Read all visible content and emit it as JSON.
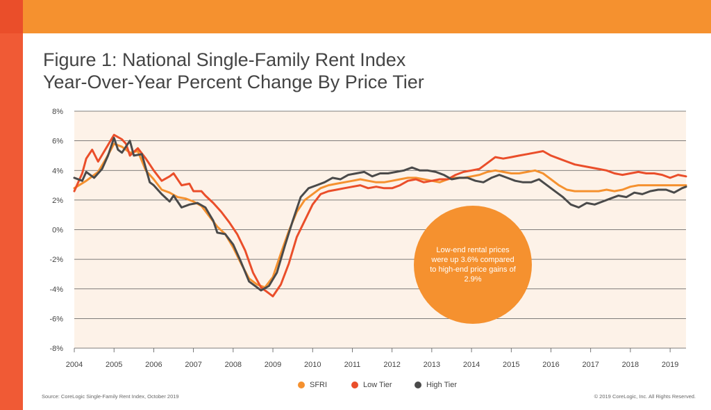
{
  "header": {
    "title_line1": "Figure 1: National Single-Family Rent Index",
    "title_line2": "Year-Over-Year Percent Change By Price Tier"
  },
  "callout": {
    "text": "Low-end rental prices were up 3.6% compared to high-end price gains of 2.9%",
    "color": "#f5912f"
  },
  "footer": {
    "source": "Source: CoreLogic Single-Family Rent Index, October 2019",
    "copyright": "© 2019 CoreLogic, Inc. All Rights Reserved."
  },
  "colors": {
    "brand_orange": "#f5912f",
    "brand_red": "#f05a35",
    "plot_bg": "#fdf2e8"
  },
  "chart_data": {
    "type": "line",
    "title": "Figure 1: National Single-Family Rent Index Year-Over-Year Percent Change By Price Tier",
    "xlabel": "",
    "ylabel": "",
    "xlim": [
      2004,
      2019.4
    ],
    "ylim": [
      -8,
      8
    ],
    "x_ticks": [
      "2004",
      "2005",
      "2006",
      "2007",
      "2008",
      "2009",
      "2010",
      "2011",
      "2012",
      "2013",
      "2014",
      "2015",
      "2016",
      "2017",
      "2018",
      "2019"
    ],
    "y_ticks": [
      "8%",
      "6%",
      "4%",
      "2%",
      "0%",
      "-2%",
      "-4%",
      "-6%",
      "-8%"
    ],
    "grid": "horizontal",
    "legend_position": "bottom",
    "series": [
      {
        "name": "SFRI",
        "color": "#f5912f",
        "points": [
          [
            2004.0,
            2.8
          ],
          [
            2004.3,
            3.3
          ],
          [
            2004.6,
            3.9
          ],
          [
            2004.8,
            4.8
          ],
          [
            2005.0,
            5.8
          ],
          [
            2005.2,
            5.6
          ],
          [
            2005.4,
            5.2
          ],
          [
            2005.6,
            5.3
          ],
          [
            2005.8,
            4.0
          ],
          [
            2006.0,
            3.4
          ],
          [
            2006.2,
            2.7
          ],
          [
            2006.4,
            2.5
          ],
          [
            2006.6,
            2.2
          ],
          [
            2006.8,
            2.1
          ],
          [
            2007.0,
            1.9
          ],
          [
            2007.2,
            1.6
          ],
          [
            2007.4,
            0.9
          ],
          [
            2007.6,
            0.2
          ],
          [
            2007.8,
            -0.3
          ],
          [
            2008.0,
            -1.2
          ],
          [
            2008.2,
            -2.3
          ],
          [
            2008.4,
            -3.3
          ],
          [
            2008.6,
            -3.7
          ],
          [
            2008.8,
            -3.9
          ],
          [
            2009.0,
            -3.2
          ],
          [
            2009.2,
            -1.6
          ],
          [
            2009.4,
            -0.1
          ],
          [
            2009.6,
            1.2
          ],
          [
            2009.8,
            2.0
          ],
          [
            2010.0,
            2.4
          ],
          [
            2010.2,
            2.8
          ],
          [
            2010.4,
            3.0
          ],
          [
            2010.6,
            3.1
          ],
          [
            2010.8,
            3.2
          ],
          [
            2011.0,
            3.3
          ],
          [
            2011.2,
            3.4
          ],
          [
            2011.4,
            3.3
          ],
          [
            2011.6,
            3.2
          ],
          [
            2011.8,
            3.2
          ],
          [
            2012.0,
            3.3
          ],
          [
            2012.2,
            3.4
          ],
          [
            2012.4,
            3.5
          ],
          [
            2012.6,
            3.5
          ],
          [
            2012.8,
            3.4
          ],
          [
            2013.0,
            3.3
          ],
          [
            2013.2,
            3.2
          ],
          [
            2013.4,
            3.4
          ],
          [
            2013.6,
            3.5
          ],
          [
            2013.8,
            3.5
          ],
          [
            2014.0,
            3.6
          ],
          [
            2014.2,
            3.7
          ],
          [
            2014.4,
            3.9
          ],
          [
            2014.6,
            4.0
          ],
          [
            2014.8,
            3.9
          ],
          [
            2015.0,
            3.8
          ],
          [
            2015.2,
            3.8
          ],
          [
            2015.4,
            3.9
          ],
          [
            2015.6,
            4.0
          ],
          [
            2015.8,
            3.8
          ],
          [
            2016.0,
            3.4
          ],
          [
            2016.2,
            3.0
          ],
          [
            2016.4,
            2.7
          ],
          [
            2016.6,
            2.6
          ],
          [
            2016.8,
            2.6
          ],
          [
            2017.0,
            2.6
          ],
          [
            2017.2,
            2.6
          ],
          [
            2017.4,
            2.7
          ],
          [
            2017.6,
            2.6
          ],
          [
            2017.8,
            2.7
          ],
          [
            2018.0,
            2.9
          ],
          [
            2018.2,
            3.0
          ],
          [
            2018.4,
            3.0
          ],
          [
            2018.6,
            3.0
          ],
          [
            2018.8,
            3.0
          ],
          [
            2019.0,
            3.0
          ],
          [
            2019.2,
            3.0
          ],
          [
            2019.4,
            3.0
          ]
        ]
      },
      {
        "name": "Low Tier",
        "color": "#ea4e2a",
        "points": [
          [
            2004.0,
            2.6
          ],
          [
            2004.2,
            3.8
          ],
          [
            2004.3,
            4.8
          ],
          [
            2004.45,
            5.4
          ],
          [
            2004.6,
            4.6
          ],
          [
            2004.8,
            5.5
          ],
          [
            2005.0,
            6.4
          ],
          [
            2005.2,
            6.1
          ],
          [
            2005.3,
            5.8
          ],
          [
            2005.4,
            5.0
          ],
          [
            2005.6,
            5.5
          ],
          [
            2005.8,
            4.8
          ],
          [
            2005.9,
            4.4
          ],
          [
            2006.0,
            4.0
          ],
          [
            2006.2,
            3.3
          ],
          [
            2006.4,
            3.6
          ],
          [
            2006.5,
            3.8
          ],
          [
            2006.7,
            3.0
          ],
          [
            2006.9,
            3.1
          ],
          [
            2007.0,
            2.6
          ],
          [
            2007.2,
            2.6
          ],
          [
            2007.3,
            2.3
          ],
          [
            2007.5,
            1.8
          ],
          [
            2007.7,
            1.2
          ],
          [
            2007.9,
            0.5
          ],
          [
            2008.1,
            -0.3
          ],
          [
            2008.3,
            -1.4
          ],
          [
            2008.5,
            -2.9
          ],
          [
            2008.7,
            -3.9
          ],
          [
            2008.9,
            -4.3
          ],
          [
            2009.0,
            -4.5
          ],
          [
            2009.2,
            -3.7
          ],
          [
            2009.4,
            -2.3
          ],
          [
            2009.6,
            -0.5
          ],
          [
            2009.8,
            0.6
          ],
          [
            2010.0,
            1.7
          ],
          [
            2010.2,
            2.4
          ],
          [
            2010.4,
            2.6
          ],
          [
            2010.6,
            2.7
          ],
          [
            2010.8,
            2.8
          ],
          [
            2011.0,
            2.9
          ],
          [
            2011.2,
            3.0
          ],
          [
            2011.4,
            2.8
          ],
          [
            2011.6,
            2.9
          ],
          [
            2011.8,
            2.8
          ],
          [
            2012.0,
            2.8
          ],
          [
            2012.2,
            3.0
          ],
          [
            2012.4,
            3.3
          ],
          [
            2012.6,
            3.4
          ],
          [
            2012.8,
            3.2
          ],
          [
            2013.0,
            3.3
          ],
          [
            2013.2,
            3.4
          ],
          [
            2013.4,
            3.4
          ],
          [
            2013.6,
            3.7
          ],
          [
            2013.8,
            3.9
          ],
          [
            2014.0,
            4.0
          ],
          [
            2014.2,
            4.1
          ],
          [
            2014.4,
            4.5
          ],
          [
            2014.6,
            4.9
          ],
          [
            2014.8,
            4.8
          ],
          [
            2015.0,
            4.9
          ],
          [
            2015.2,
            5.0
          ],
          [
            2015.4,
            5.1
          ],
          [
            2015.6,
            5.2
          ],
          [
            2015.8,
            5.3
          ],
          [
            2016.0,
            5.0
          ],
          [
            2016.2,
            4.8
          ],
          [
            2016.4,
            4.6
          ],
          [
            2016.6,
            4.4
          ],
          [
            2016.8,
            4.3
          ],
          [
            2017.0,
            4.2
          ],
          [
            2017.2,
            4.1
          ],
          [
            2017.4,
            4.0
          ],
          [
            2017.6,
            3.8
          ],
          [
            2017.8,
            3.7
          ],
          [
            2018.0,
            3.8
          ],
          [
            2018.2,
            3.9
          ],
          [
            2018.4,
            3.8
          ],
          [
            2018.6,
            3.8
          ],
          [
            2018.8,
            3.7
          ],
          [
            2019.0,
            3.5
          ],
          [
            2019.2,
            3.7
          ],
          [
            2019.4,
            3.6
          ]
        ]
      },
      {
        "name": "High Tier",
        "color": "#4a4a4a",
        "points": [
          [
            2004.0,
            3.5
          ],
          [
            2004.2,
            3.3
          ],
          [
            2004.3,
            3.9
          ],
          [
            2004.5,
            3.5
          ],
          [
            2004.7,
            4.1
          ],
          [
            2004.85,
            5.0
          ],
          [
            2005.0,
            6.2
          ],
          [
            2005.1,
            5.4
          ],
          [
            2005.2,
            5.2
          ],
          [
            2005.4,
            6.0
          ],
          [
            2005.5,
            5.0
          ],
          [
            2005.7,
            5.1
          ],
          [
            2005.9,
            3.2
          ],
          [
            2006.0,
            3.0
          ],
          [
            2006.2,
            2.4
          ],
          [
            2006.4,
            1.9
          ],
          [
            2006.5,
            2.3
          ],
          [
            2006.7,
            1.5
          ],
          [
            2006.9,
            1.7
          ],
          [
            2007.1,
            1.8
          ],
          [
            2007.3,
            1.5
          ],
          [
            2007.5,
            0.6
          ],
          [
            2007.6,
            -0.2
          ],
          [
            2007.8,
            -0.3
          ],
          [
            2008.0,
            -1.0
          ],
          [
            2008.2,
            -2.2
          ],
          [
            2008.4,
            -3.5
          ],
          [
            2008.6,
            -3.9
          ],
          [
            2008.7,
            -4.1
          ],
          [
            2008.9,
            -3.8
          ],
          [
            2009.1,
            -2.9
          ],
          [
            2009.3,
            -1.1
          ],
          [
            2009.5,
            0.6
          ],
          [
            2009.7,
            2.2
          ],
          [
            2009.9,
            2.8
          ],
          [
            2010.1,
            3.0
          ],
          [
            2010.3,
            3.2
          ],
          [
            2010.5,
            3.5
          ],
          [
            2010.7,
            3.4
          ],
          [
            2010.9,
            3.7
          ],
          [
            2011.1,
            3.8
          ],
          [
            2011.3,
            3.9
          ],
          [
            2011.5,
            3.6
          ],
          [
            2011.7,
            3.8
          ],
          [
            2011.9,
            3.8
          ],
          [
            2012.1,
            3.9
          ],
          [
            2012.3,
            4.0
          ],
          [
            2012.5,
            4.2
          ],
          [
            2012.7,
            4.0
          ],
          [
            2012.9,
            4.0
          ],
          [
            2013.1,
            3.9
          ],
          [
            2013.3,
            3.7
          ],
          [
            2013.5,
            3.4
          ],
          [
            2013.7,
            3.5
          ],
          [
            2013.9,
            3.5
          ],
          [
            2014.1,
            3.3
          ],
          [
            2014.3,
            3.2
          ],
          [
            2014.5,
            3.5
          ],
          [
            2014.7,
            3.7
          ],
          [
            2014.9,
            3.5
          ],
          [
            2015.1,
            3.3
          ],
          [
            2015.3,
            3.2
          ],
          [
            2015.5,
            3.2
          ],
          [
            2015.7,
            3.4
          ],
          [
            2015.9,
            3.0
          ],
          [
            2016.1,
            2.6
          ],
          [
            2016.3,
            2.2
          ],
          [
            2016.5,
            1.7
          ],
          [
            2016.7,
            1.5
          ],
          [
            2016.9,
            1.8
          ],
          [
            2017.1,
            1.7
          ],
          [
            2017.3,
            1.9
          ],
          [
            2017.5,
            2.1
          ],
          [
            2017.7,
            2.3
          ],
          [
            2017.9,
            2.2
          ],
          [
            2018.1,
            2.5
          ],
          [
            2018.3,
            2.4
          ],
          [
            2018.5,
            2.6
          ],
          [
            2018.7,
            2.7
          ],
          [
            2018.9,
            2.7
          ],
          [
            2019.1,
            2.5
          ],
          [
            2019.3,
            2.8
          ],
          [
            2019.4,
            2.9
          ]
        ]
      }
    ]
  }
}
